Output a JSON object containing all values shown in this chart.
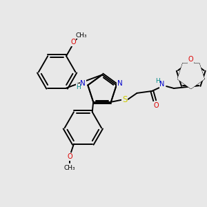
{
  "background_color": "#e8e8e8",
  "atom_colors": {
    "C": "#000000",
    "N": "#0000cc",
    "O": "#dd0000",
    "S": "#cccc00",
    "H": "#008888"
  },
  "bg": "#e8e8e8"
}
